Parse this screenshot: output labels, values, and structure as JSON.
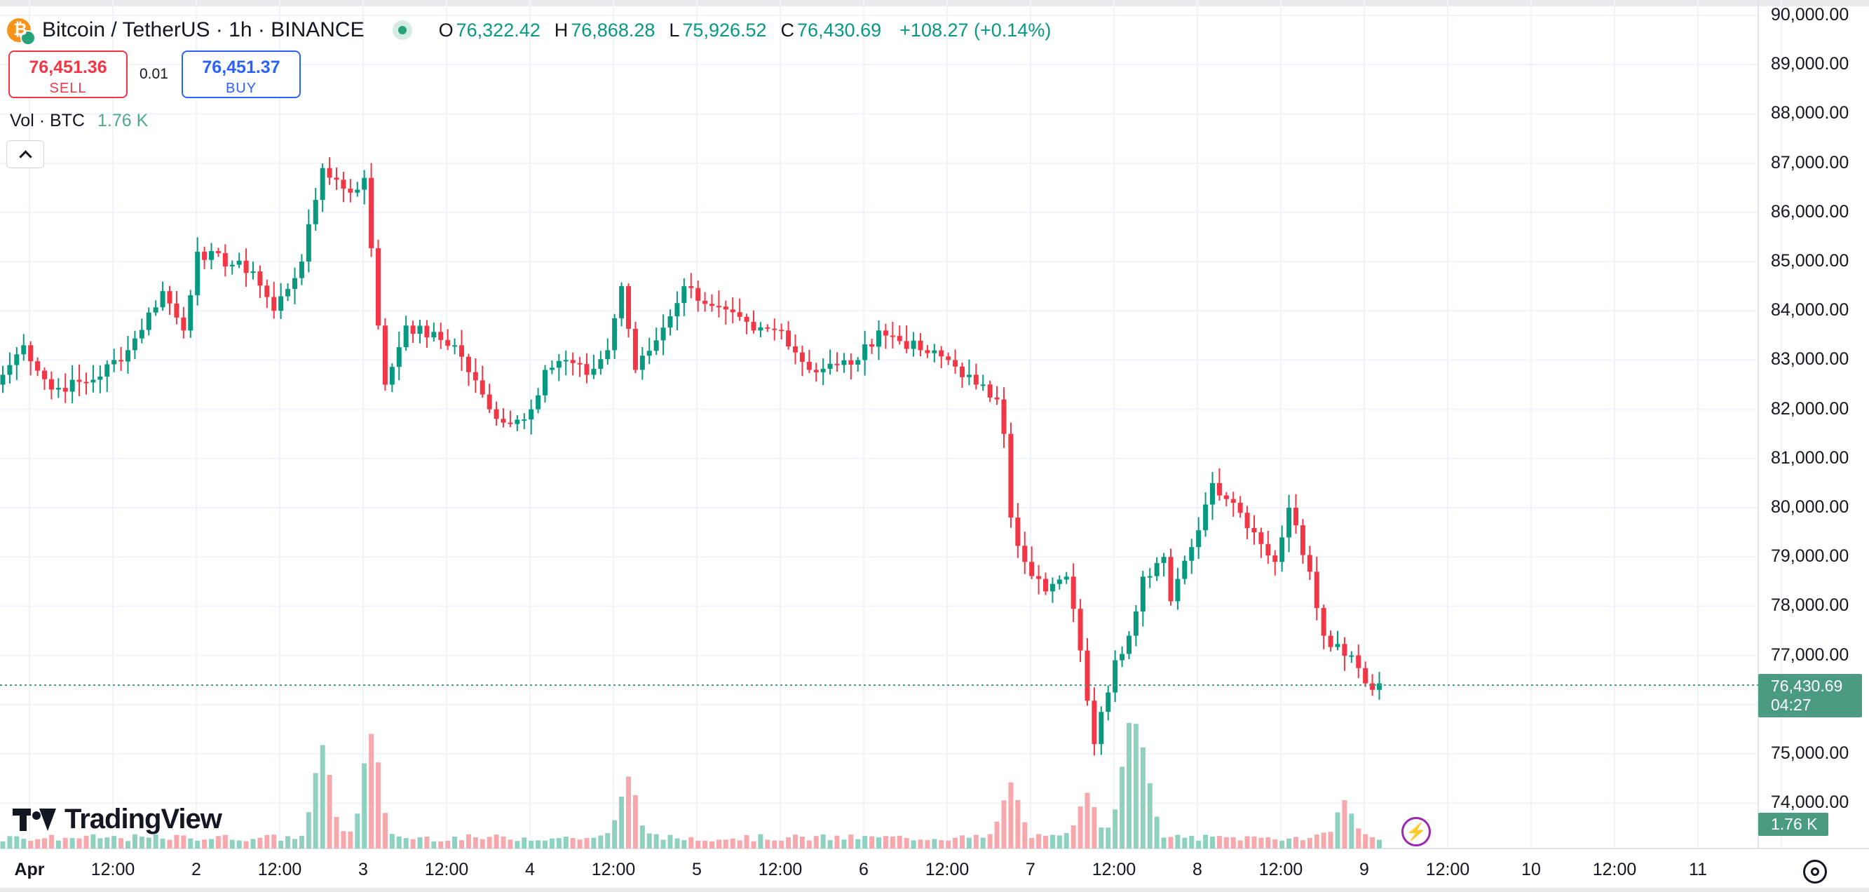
{
  "header": {
    "symbol": "Bitcoin / TetherUS · 1h · BINANCE",
    "ohlc": {
      "o_label": "O",
      "o": "76,322.42",
      "h_label": "H",
      "h": "76,868.28",
      "l_label": "L",
      "l": "75,926.52",
      "c_label": "C",
      "c": "76,430.69"
    },
    "change": "+108.27 (+0.14%)"
  },
  "trade": {
    "sell_price": "76,451.36",
    "sell_label": "SELL",
    "spread": "0.01",
    "buy_price": "76,451.37",
    "buy_label": "BUY"
  },
  "volume": {
    "label": "Vol · BTC",
    "value": "1.76 K"
  },
  "brand": "TradingView",
  "price_axis": {
    "labels": [
      "90,000.00",
      "89,000.00",
      "88,000.00",
      "87,000.00",
      "86,000.00",
      "85,000.00",
      "84,000.00",
      "83,000.00",
      "82,000.00",
      "81,000.00",
      "80,000.00",
      "79,000.00",
      "78,000.00",
      "77,000.00",
      "75,000.00",
      "74,000.00"
    ],
    "current_price": "76,430.69",
    "countdown": "04:27",
    "volume_tag": "1.76 K"
  },
  "time_axis": {
    "labels": [
      "Apr",
      "12:00",
      "2",
      "12:00",
      "3",
      "12:00",
      "4",
      "12:00",
      "5",
      "12:00",
      "6",
      "12:00",
      "7",
      "12:00",
      "8",
      "12:00",
      "9",
      "12:00",
      "10",
      "12:00",
      "11"
    ]
  },
  "colors": {
    "up": "#089981",
    "down": "#f23645",
    "up_vol": "#8fd1c0",
    "down_vol": "#f7a8ad",
    "grid": "#f0f3fa",
    "accent": "#2962ff"
  },
  "chart_data": {
    "type": "candlestick",
    "interval": "1h",
    "y_range": [
      73700,
      90300
    ],
    "grid": true,
    "days": [
      "Apr",
      "2",
      "3",
      "4",
      "5",
      "6",
      "7",
      "8",
      "9",
      "10",
      "11"
    ],
    "anchor_closes": [
      [
        "Apr 1 00:00",
        82700
      ],
      [
        "Apr 1 03:00",
        83300
      ],
      [
        "Apr 1 07:00",
        82400
      ],
      [
        "Apr 1 13:00",
        82600
      ],
      [
        "Apr 1 18:00",
        83200
      ],
      [
        "Apr 1 23:00",
        84400
      ],
      [
        "Apr 2 02:00",
        83600
      ],
      [
        "Apr 2 04:00",
        85200
      ],
      [
        "Apr 2 12:00",
        84800
      ],
      [
        "Apr 2 15:00",
        84000
      ],
      [
        "Apr 2 19:00",
        85000
      ],
      [
        "Apr 2 22:00",
        86900
      ],
      [
        "Apr 3 02:00",
        86400
      ],
      [
        "Apr 3 04:00",
        86700
      ],
      [
        "Apr 3 06:00",
        83700
      ],
      [
        "Apr 3 07:00",
        82500
      ],
      [
        "Apr 3 10:00",
        83700
      ],
      [
        "Apr 3 17:00",
        83300
      ],
      [
        "Apr 3 22:00",
        82000
      ],
      [
        "Apr 4 01:00",
        81700
      ],
      [
        "Apr 4 04:00",
        82000
      ],
      [
        "Apr 4 06:00",
        82800
      ],
      [
        "Apr 4 09:00",
        83000
      ],
      [
        "Apr 4 12:00",
        82700
      ],
      [
        "Apr 4 15:00",
        83200
      ],
      [
        "Apr 4 17:00",
        84500
      ],
      [
        "Apr 4 19:00",
        82800
      ],
      [
        "Apr 4 22:00",
        83400
      ],
      [
        "Apr 5 02:00",
        84500
      ],
      [
        "Apr 5 06:00",
        84100
      ],
      [
        "Apr 5 12:00",
        83600
      ],
      [
        "Apr 5 16:00",
        83600
      ],
      [
        "Apr 5 20:00",
        82800
      ],
      [
        "Apr 6 00:00",
        82900
      ],
      [
        "Apr 6 03:00",
        83000
      ],
      [
        "Apr 6 06:00",
        83600
      ],
      [
        "Apr 6 12:00",
        83200
      ],
      [
        "Apr 6 16:00",
        83000
      ],
      [
        "Apr 6 20:00",
        82500
      ],
      [
        "Apr 6 23:00",
        82200
      ],
      [
        "Apr 7 00:00",
        81500
      ],
      [
        "Apr 7 01:00",
        79800
      ],
      [
        "Apr 7 03:00",
        78900
      ],
      [
        "Apr 7 06:00",
        78300
      ],
      [
        "Apr 7 09:00",
        78600
      ],
      [
        "Apr 7 11:00",
        77100
      ],
      [
        "Apr 7 13:00",
        75200
      ],
      [
        "Apr 7 16:00",
        76900
      ],
      [
        "Apr 7 18:00",
        77400
      ],
      [
        "Apr 7 20:00",
        78600
      ],
      [
        "Apr 7 23:00",
        79000
      ],
      [
        "Apr 8 00:00",
        78100
      ],
      [
        "Apr 8 03:00",
        79200
      ],
      [
        "Apr 8 06:00",
        80500
      ],
      [
        "Apr 8 09:00",
        80100
      ],
      [
        "Apr 8 12:00",
        79500
      ],
      [
        "Apr 8 15:00",
        78900
      ],
      [
        "Apr 8 17:00",
        80000
      ],
      [
        "Apr 8 20:00",
        78700
      ],
      [
        "Apr 8 22:00",
        77400
      ],
      [
        "Apr 9 02:00",
        77000
      ],
      [
        "Apr 9 05:00",
        76300
      ],
      [
        "Apr 9 06:00",
        76430.69
      ]
    ],
    "volume_peaks": [
      [
        "Apr 2 22:00",
        1500
      ],
      [
        "Apr 3 05:00",
        1700
      ],
      [
        "Apr 4 18:00",
        1000
      ],
      [
        "Apr 7 01:00",
        900
      ],
      [
        "Apr 7 12:00",
        800
      ],
      [
        "Apr 7 18:00",
        1650
      ],
      [
        "Apr 7 20:00",
        1100
      ],
      [
        "Apr 9 01:00",
        600
      ]
    ]
  }
}
